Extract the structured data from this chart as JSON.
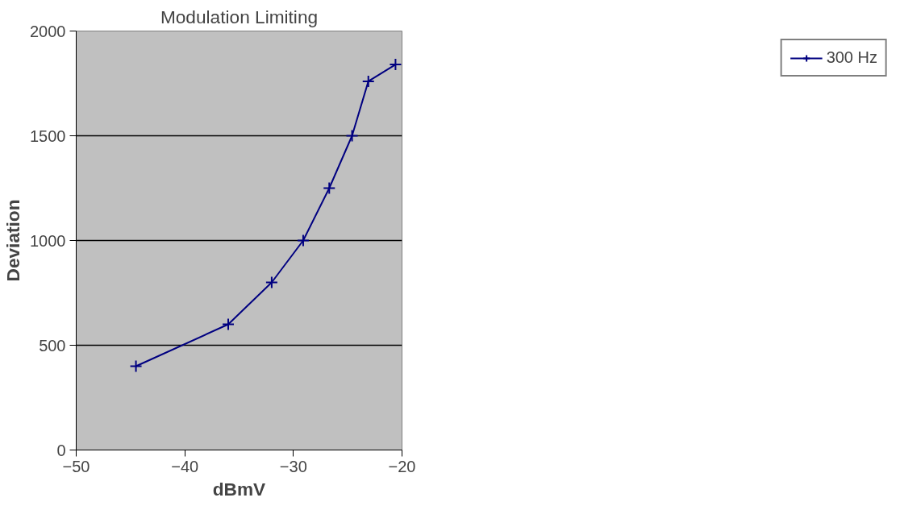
{
  "chart_data": {
    "type": "line",
    "title": "Modulation Limiting",
    "xlabel": "dBmV",
    "ylabel": "Deviation",
    "x": [
      -44.5,
      -36.0,
      -32.0,
      -29.1,
      -26.7,
      -24.6,
      -23.1,
      -20.6
    ],
    "series": [
      {
        "name": "300 Hz",
        "color": "#000080",
        "values": [
          400,
          600,
          800,
          1000,
          1250,
          1500,
          1760,
          1840
        ]
      }
    ],
    "xlim": [
      -50,
      -20
    ],
    "xticks": [
      -50,
      -40,
      -30,
      -20
    ],
    "ylim": [
      0,
      2000
    ],
    "yticks": [
      0,
      500,
      1000,
      1500,
      2000
    ],
    "grid": "y",
    "legend": "right",
    "marker": "cross",
    "line_style": "solid"
  }
}
